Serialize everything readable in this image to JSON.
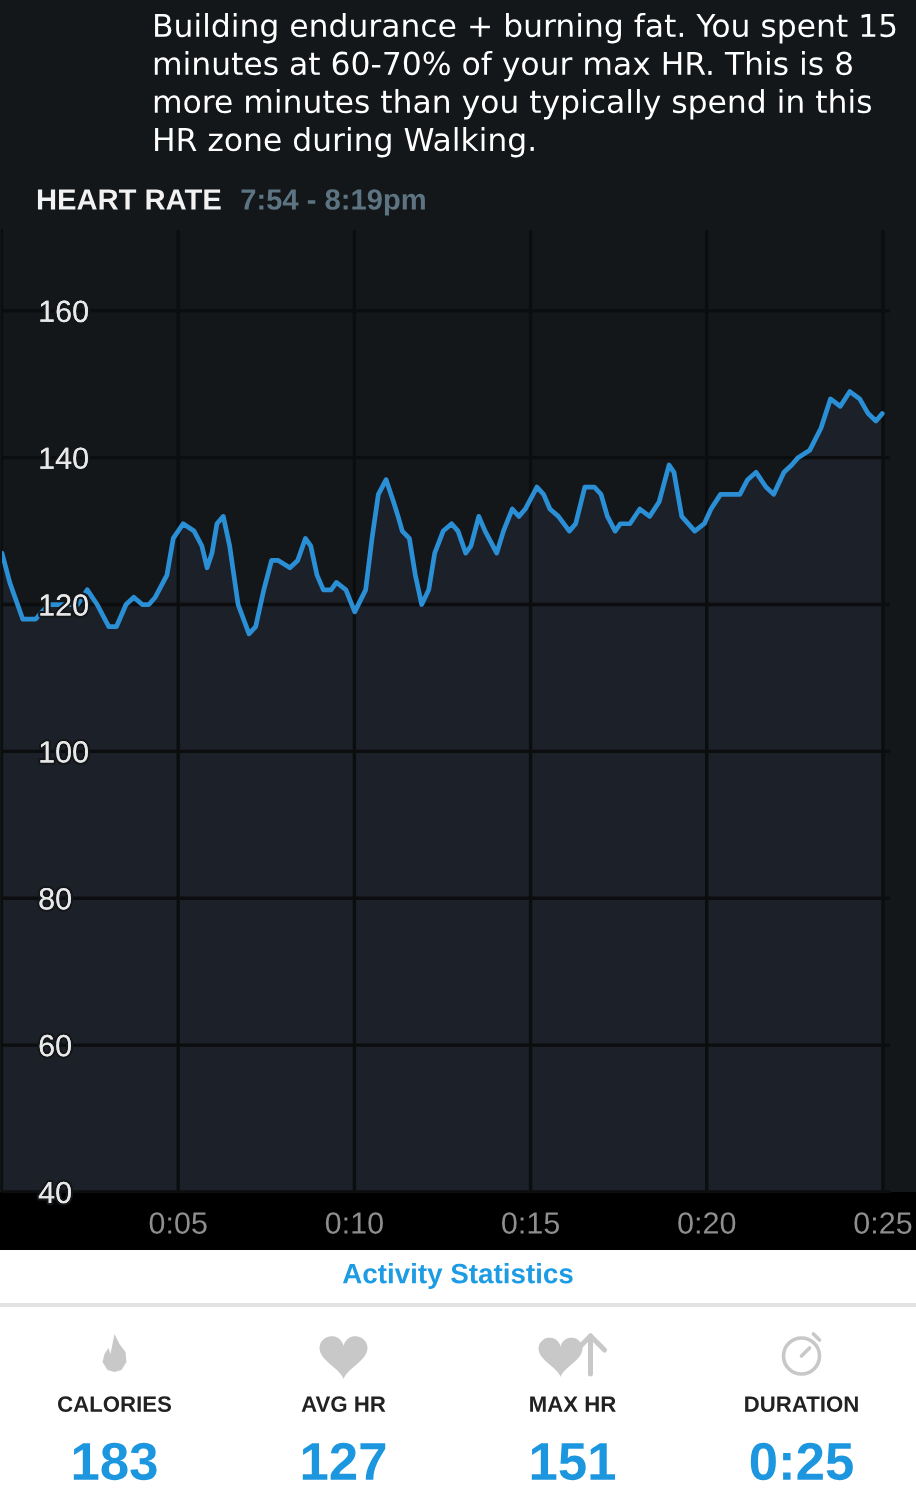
{
  "chart_data": [
    {
      "type": "area",
      "title": "HEART RATE",
      "subtitle": "7:54 - 8:19pm",
      "annotations": [
        "Building endurance + burning fat. You spent 15 minutes at 60-70% of your max HR. This is 8 more minutes than you typically spend in this HR zone during Walking."
      ],
      "x": [
        0,
        0.22,
        0.59,
        0.95,
        1.32,
        1.6,
        1.87,
        2.15,
        2.42,
        2.7,
        3.03,
        3.25,
        3.52,
        3.74,
        3.98,
        4.17,
        4.35,
        4.68,
        4.86,
        5.14,
        5.45,
        5.67,
        5.82,
        5.96,
        6.1,
        6.28,
        6.46,
        6.7,
        7.01,
        7.2,
        7.43,
        7.65,
        7.84,
        8.17,
        8.39,
        8.61,
        8.76,
        8.94,
        9.12,
        9.34,
        9.49,
        9.76,
        10.01,
        10.32,
        10.5,
        10.68,
        10.9,
        11.11,
        11.24,
        11.36,
        11.56,
        11.73,
        11.91,
        12.11,
        12.28,
        12.52,
        12.76,
        12.94,
        13.16,
        13.31,
        13.53,
        13.71,
        14.04,
        14.23,
        14.48,
        14.67,
        14.85,
        15.18,
        15.37,
        15.55,
        15.79,
        16.1,
        16.28,
        16.54,
        16.81,
        17.0,
        17.18,
        17.4,
        17.55,
        17.82,
        18.1,
        18.38,
        18.65,
        18.93,
        19.07,
        19.29,
        19.66,
        19.93,
        20.12,
        20.39,
        20.67,
        20.94,
        21.16,
        21.4,
        21.68,
        21.9,
        22.19,
        22.41,
        22.59,
        22.92,
        23.24,
        23.51,
        23.79,
        24.06,
        24.34,
        24.58,
        24.8,
        24.98
      ],
      "series": [
        {
          "color": "#2b8fd6",
          "values": [
            127,
            123,
            118,
            118,
            120,
            120,
            120,
            120,
            122,
            120,
            117,
            117,
            120,
            121,
            120,
            120,
            121,
            124,
            129,
            131,
            130,
            128,
            125,
            127,
            131,
            132,
            128,
            120,
            116,
            117,
            122,
            126,
            126,
            125,
            126,
            129,
            128,
            124,
            122,
            122,
            123,
            122,
            119,
            122,
            129,
            135,
            137,
            134,
            132,
            130,
            129,
            124,
            120,
            122,
            127,
            130,
            131,
            130,
            127,
            128,
            132,
            130,
            127,
            130,
            133,
            132,
            133,
            136,
            135,
            133,
            132,
            130,
            131,
            136,
            136,
            135,
            132,
            130,
            131,
            131,
            133,
            132,
            134,
            139,
            138,
            132,
            130,
            131,
            133,
            135,
            135,
            135,
            137,
            138,
            136,
            135,
            138,
            139,
            140,
            141,
            144,
            148,
            147,
            149,
            148,
            146,
            145,
            146
          ]
        }
      ],
      "xlim": [
        0,
        25.2
      ],
      "xticks": [
        {
          "value": 5,
          "label": "0:05"
        },
        {
          "value": 10,
          "label": "0:10"
        },
        {
          "value": 15,
          "label": "0:15"
        },
        {
          "value": 20,
          "label": "0:20"
        },
        {
          "value": 25,
          "label": "0:25"
        }
      ],
      "ylim": [
        40,
        171
      ],
      "yticks": [
        40,
        60,
        80,
        100,
        120,
        140,
        160
      ],
      "grid": true
    },
    {
      "type": "other",
      "title": "Activity Statistics",
      "annotations": [
        "CALORIES",
        "183",
        "AVG HR",
        "127",
        "MAX HR",
        "151",
        "DURATION",
        "0:25"
      ]
    }
  ]
}
